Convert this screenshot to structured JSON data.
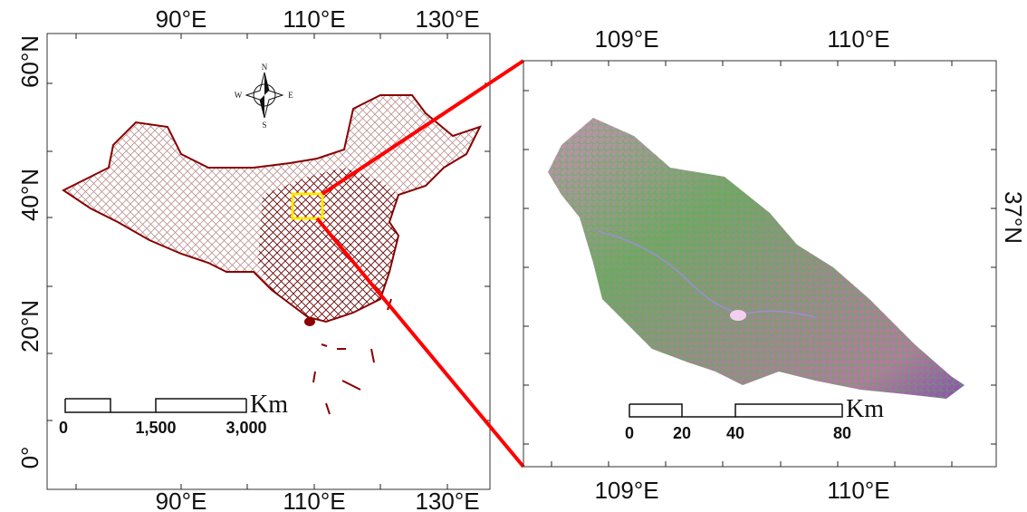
{
  "left_map": {
    "top_labels": [
      "90°E",
      "110°E",
      "130°E"
    ],
    "bottom_labels": [
      "90°E",
      "110°E",
      "130°E"
    ],
    "lat_labels": [
      "60°N",
      "40°N",
      "20°N",
      "0°"
    ],
    "compass": {
      "north": "N",
      "south": "S",
      "west": "W",
      "east": "E"
    },
    "scale": {
      "ticks": [
        "0",
        "1,500",
        "3,000"
      ],
      "unit": "Km"
    }
  },
  "right_map": {
    "top_labels": [
      "109°E",
      "110°E"
    ],
    "bottom_labels": [
      "109°E",
      "110°E"
    ],
    "lat_label": "37°N",
    "scale": {
      "ticks": [
        "0",
        "20",
        "40",
        "80"
      ],
      "unit": "Km"
    }
  }
}
